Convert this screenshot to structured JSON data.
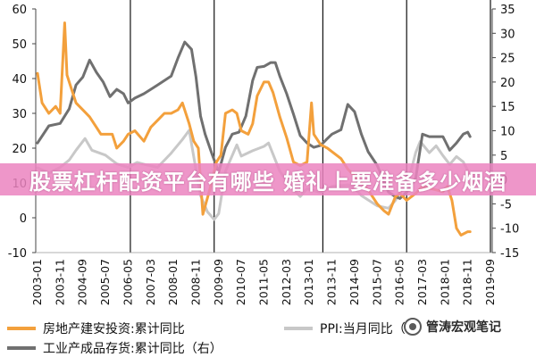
{
  "overlay": {
    "banner_text": "股票杠杆配资平台有哪些 婚礼上要准备多少烟酒",
    "banner_color": "rgba(235,132,192,0.85)"
  },
  "watermark": {
    "text": "管涛宏观笔记",
    "icon": "wechat-logo-icon"
  },
  "chart_data": {
    "type": "line",
    "title": "",
    "xlabel": "",
    "ylabel": "",
    "grid": false,
    "legend_position": "bottom",
    "xlim": [
      "2003-01",
      "2019-09"
    ],
    "x_ticks": [
      "2003-01",
      "2003-11",
      "2004-09",
      "2005-07",
      "2006-05",
      "2007-03",
      "2008-01",
      "2008-11",
      "2009-09",
      "2010-07",
      "2011-05",
      "2012-03",
      "2013-01",
      "2013-11",
      "2014-09",
      "2015-07",
      "2016-05",
      "2017-03",
      "2018-01",
      "2018-11",
      "2019-09"
    ],
    "y_left": {
      "lim": [
        -10,
        60
      ],
      "ticks": [
        60,
        50,
        40,
        30,
        20,
        10,
        0,
        -10
      ]
    },
    "y_right": {
      "lim": [
        -15,
        35
      ],
      "ticks": [
        35,
        30,
        25,
        20,
        15,
        10,
        5,
        0,
        -5,
        -10,
        -15
      ]
    },
    "reference_lines": [
      "2006-06",
      "2009-07",
      "2013-07",
      "2016-08",
      "2019-09"
    ],
    "series": [
      {
        "name": "房地产建安投资:累计同比",
        "axis": "left",
        "color": "#f3a03c",
        "x": [
          "2003-01",
          "2003-03",
          "2003-06",
          "2003-09",
          "2003-11",
          "2004-01",
          "2004-02",
          "2004-04",
          "2004-06",
          "2004-09",
          "2004-12",
          "2005-03",
          "2005-05",
          "2005-07",
          "2005-10",
          "2005-12",
          "2006-03",
          "2006-05",
          "2006-08",
          "2006-12",
          "2007-03",
          "2007-06",
          "2007-09",
          "2007-12",
          "2008-03",
          "2008-05",
          "2008-08",
          "2008-10",
          "2008-12",
          "2009-02",
          "2009-05",
          "2009-08",
          "2009-10",
          "2009-12",
          "2010-03",
          "2010-05",
          "2010-07",
          "2010-10",
          "2010-12",
          "2011-02",
          "2011-05",
          "2011-07",
          "2011-09",
          "2011-12",
          "2012-03",
          "2012-06",
          "2012-09",
          "2012-12",
          "2013-02",
          "2013-03",
          "2013-06",
          "2013-09",
          "2013-11",
          "2014-03",
          "2014-06",
          "2014-09",
          "2014-12",
          "2015-03",
          "2015-07",
          "2015-10",
          "2015-12",
          "2016-03",
          "2016-05",
          "2016-08",
          "2016-12",
          "2017-03",
          "2017-06",
          "2017-09",
          "2017-12",
          "2018-02",
          "2018-04",
          "2018-06",
          "2018-08",
          "2018-11",
          "2018-12"
        ],
        "y": [
          41.5,
          33,
          30,
          32,
          30,
          56,
          41,
          37,
          33,
          31,
          29,
          26,
          24,
          24,
          24,
          20,
          22,
          24,
          25,
          22,
          26,
          28,
          30,
          30,
          31,
          33,
          27,
          22,
          20,
          1,
          8,
          16,
          18,
          30,
          31,
          30,
          25,
          24,
          27,
          35,
          39,
          39,
          36,
          29,
          23,
          16,
          15,
          16,
          33,
          24,
          21,
          20,
          19,
          17,
          14,
          12,
          10,
          8,
          4,
          2,
          1,
          6,
          7,
          5,
          7,
          9,
          8.5,
          8,
          7.5,
          9,
          5,
          -3,
          -5,
          -4,
          -4
        ]
      },
      {
        "name": "PPI:当月同比（",
        "axis": "right",
        "color": "#c8c8c8",
        "x": [
          "2003-01",
          "2003-06",
          "2003-11",
          "2004-03",
          "2004-06",
          "2004-10",
          "2005-01",
          "2005-07",
          "2005-12",
          "2006-05",
          "2006-09",
          "2007-01",
          "2007-06",
          "2007-12",
          "2008-05",
          "2008-08",
          "2008-11",
          "2009-01",
          "2009-04",
          "2009-07",
          "2009-09",
          "2009-12",
          "2010-05",
          "2010-07",
          "2010-12",
          "2011-05",
          "2011-07",
          "2011-12",
          "2012-03",
          "2012-06",
          "2012-09",
          "2012-12",
          "2013-06",
          "2013-11",
          "2014-06",
          "2014-09",
          "2014-12",
          "2015-07",
          "2015-12",
          "2016-03",
          "2016-05",
          "2016-09",
          "2016-12",
          "2017-02",
          "2017-06",
          "2017-09",
          "2017-12",
          "2018-03",
          "2018-06",
          "2018-09",
          "2018-12"
        ],
        "y": [
          2.4,
          1.3,
          2.5,
          4,
          6,
          8.4,
          6,
          5,
          3.2,
          2.5,
          3.5,
          3,
          2.5,
          5.4,
          8.2,
          10.1,
          2,
          -3.3,
          -6.6,
          -8.2,
          -7,
          1.7,
          7.1,
          4.8,
          5.9,
          6.8,
          7.5,
          1.7,
          -0.3,
          -2.1,
          -3.5,
          -1.9,
          -2.7,
          -1.4,
          -1.1,
          -1.8,
          -3.3,
          -5.4,
          -5.9,
          -4.3,
          -2.8,
          0.1,
          5.5,
          7.8,
          5.5,
          6.9,
          4.9,
          3.1,
          4.7,
          3.6,
          0.9
        ]
      },
      {
        "name": "工业产成品存货:累计同比（右）",
        "axis": "right",
        "color": "#707070",
        "x": [
          "2003-01",
          "2003-06",
          "2003-11",
          "2004-03",
          "2004-06",
          "2004-09",
          "2004-12",
          "2005-03",
          "2005-06",
          "2005-09",
          "2005-12",
          "2006-03",
          "2006-05",
          "2006-08",
          "2006-12",
          "2007-03",
          "2007-06",
          "2007-09",
          "2007-12",
          "2008-03",
          "2008-06",
          "2008-09",
          "2008-11",
          "2009-01",
          "2009-03",
          "2009-06",
          "2009-09",
          "2009-12",
          "2010-03",
          "2010-06",
          "2010-09",
          "2010-12",
          "2011-02",
          "2011-05",
          "2011-08",
          "2011-10",
          "2011-12",
          "2012-03",
          "2012-06",
          "2012-09",
          "2012-12",
          "2013-03",
          "2013-06",
          "2013-09",
          "2013-11",
          "2014-03",
          "2014-06",
          "2014-09",
          "2014-12",
          "2015-03",
          "2015-07",
          "2015-12",
          "2016-03",
          "2016-05",
          "2016-08",
          "2016-12",
          "2017-03",
          "2017-06",
          "2017-09",
          "2017-12",
          "2018-01",
          "2018-03",
          "2018-06",
          "2018-09",
          "2018-11",
          "2018-12"
        ],
        "y": [
          7.5,
          11,
          11.5,
          14.5,
          19.4,
          21,
          24.5,
          22,
          20,
          17,
          18.5,
          17.6,
          15.7,
          16.7,
          17.6,
          18.5,
          19.4,
          20.3,
          21.2,
          24.9,
          28.2,
          26.7,
          21,
          13,
          9.3,
          5.3,
          1.5,
          6.6,
          9.3,
          9.7,
          13,
          20.3,
          23,
          23.2,
          24,
          24,
          21.2,
          17.6,
          13.4,
          9,
          7.5,
          6.6,
          7,
          8.4,
          9.3,
          10.2,
          15.4,
          13.9,
          9.3,
          5.7,
          2.9,
          -2.6,
          -3.5,
          -3.9,
          -2.6,
          0.2,
          9.3,
          8.8,
          8.8,
          8.8,
          7.9,
          6,
          7.5,
          9.3,
          9.7,
          8.8
        ]
      }
    ]
  }
}
